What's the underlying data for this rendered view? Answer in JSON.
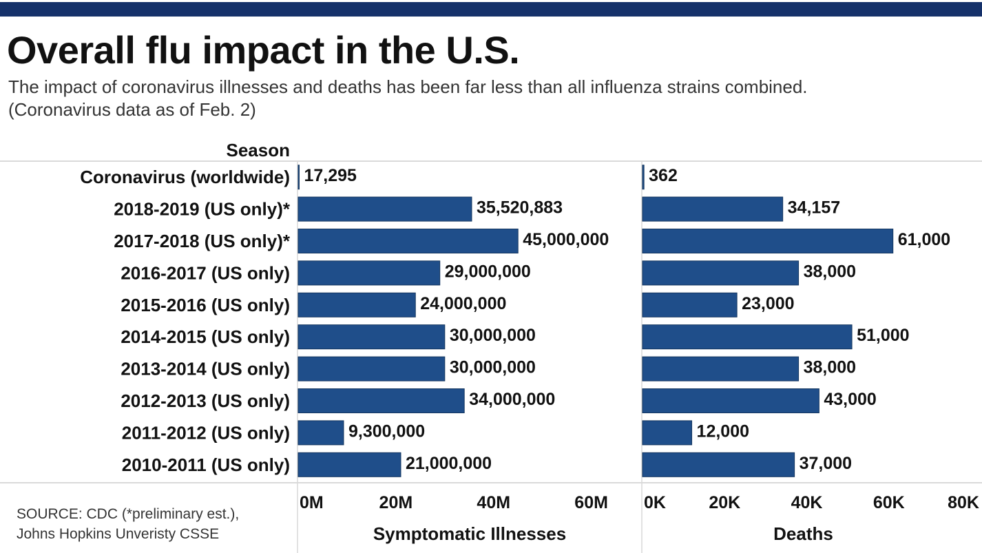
{
  "header": {
    "title": "Overall flu impact in the U.S.",
    "subtitle_line1": "The impact of coronavirus illnesses and deaths has been far less than all influenza strains combined.",
    "subtitle_line2": "(Coronavirus data as of Feb. 2)"
  },
  "footer": {
    "source_line1": "SOURCE: CDC  (*preliminary est.),",
    "source_line2": "Johns Hopkins Unveristy CSSE"
  },
  "colors": {
    "bar": "#1f4e8a",
    "bar_edge": "#14365f",
    "grid": "#d9d9d9",
    "top_bar": "#15316a"
  },
  "chart_data": {
    "type": "bar",
    "orientation": "horizontal",
    "row_header": "Season",
    "categories": [
      "Coronavirus (worldwide)",
      "2018-2019 (US only)*",
      "2017-2018 (US only)*",
      "2016-2017 (US only)",
      "2015-2016 (US only)",
      "2014-2015 (US only)",
      "2013-2014 (US only)",
      "2012-2013 (US only)",
      "2011-2012 (US only)",
      "2010-2011 (US only)"
    ],
    "panels": [
      {
        "xlabel": "Symptomatic Illnesses",
        "xlim": [
          0,
          64000000
        ],
        "ticks": [
          0,
          20000000,
          40000000,
          60000000
        ],
        "tick_labels": [
          "0M",
          "20M",
          "40M",
          "60M"
        ],
        "values": [
          17295,
          35520883,
          45000000,
          29000000,
          24000000,
          30000000,
          30000000,
          34000000,
          9300000,
          21000000
        ],
        "value_labels": [
          "17,295",
          "35,520,883",
          "45,000,000",
          "29,000,000",
          "24,000,000",
          "30,000,000",
          "30,000,000",
          "34,000,000",
          "9,300,000",
          "21,000,000"
        ]
      },
      {
        "xlabel": "Deaths",
        "xlim": [
          0,
          80000
        ],
        "ticks": [
          0,
          20000,
          40000,
          60000,
          80000
        ],
        "tick_labels": [
          "0K",
          "20K",
          "40K",
          "60K",
          "80K"
        ],
        "values": [
          362,
          34157,
          61000,
          38000,
          23000,
          51000,
          38000,
          43000,
          12000,
          37000
        ],
        "value_labels": [
          "362",
          "34,157",
          "61,000",
          "38,000",
          "23,000",
          "51,000",
          "38,000",
          "43,000",
          "12,000",
          "37,000"
        ]
      }
    ]
  }
}
